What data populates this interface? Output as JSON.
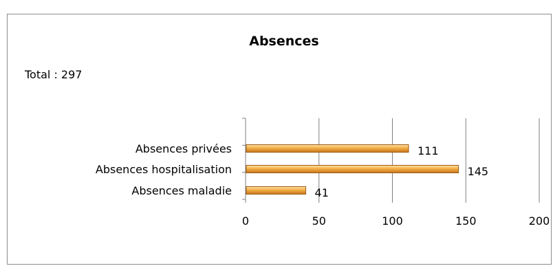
{
  "chart_data": {
    "type": "bar",
    "orientation": "horizontal",
    "title": "Absences",
    "annotation": "Total : 297",
    "categories": [
      "Absences privées",
      "Absences hospitalisation",
      "Absences maladie"
    ],
    "values": [
      111,
      145,
      41
    ],
    "xlim": [
      0,
      200
    ],
    "xticks": [
      "0",
      "50",
      "100",
      "150",
      "200"
    ],
    "grid": "vertical",
    "legend": "none",
    "bar_color": "#f0a83a",
    "bar_edge_color": "#9b5a14",
    "data_labels": true
  }
}
